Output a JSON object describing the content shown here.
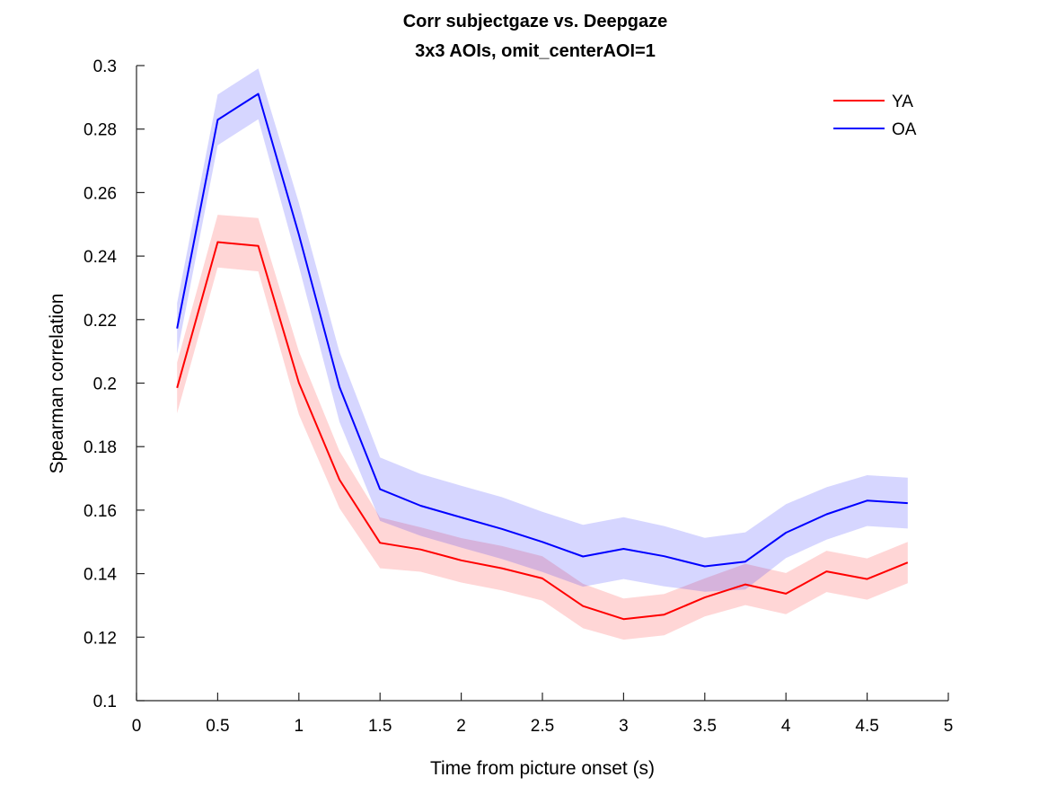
{
  "chart_data": {
    "type": "line",
    "title": [
      "Corr subjectgaze vs. Deepgaze",
      "3x3 AOIs, omit_centerAOI=1"
    ],
    "xlabel": "Time from picture onset (s)",
    "ylabel": "Spearman correlation",
    "xlim": [
      0,
      5
    ],
    "ylim": [
      0.1,
      0.3
    ],
    "xticks": [
      0,
      0.5,
      1,
      1.5,
      2,
      2.5,
      3,
      3.5,
      4,
      4.5,
      5
    ],
    "xtick_labels": [
      "0",
      "0.5",
      "1",
      "1.5",
      "2",
      "2.5",
      "3",
      "3.5",
      "4",
      "4.5",
      "5"
    ],
    "yticks": [
      0.1,
      0.12,
      0.14,
      0.16,
      0.18,
      0.2,
      0.22,
      0.24,
      0.26,
      0.28,
      0.3
    ],
    "ytick_labels": [
      "0.1",
      "0.12",
      "0.14",
      "0.16",
      "0.18",
      "0.2",
      "0.22",
      "0.24",
      "0.26",
      "0.28",
      "0.3"
    ],
    "grid": false,
    "legend_position": "top-right",
    "x": [
      0.25,
      0.5,
      0.75,
      1.0,
      1.25,
      1.5,
      1.75,
      2.0,
      2.25,
      2.5,
      2.75,
      3.0,
      3.25,
      3.5,
      3.75,
      4.0,
      4.25,
      4.5,
      4.75
    ],
    "series": [
      {
        "name": "YA",
        "color": "#ff0000",
        "band_color": "#ff0000",
        "values": [
          0.1985,
          0.2444,
          0.2432,
          0.2001,
          0.1696,
          0.1497,
          0.1476,
          0.1442,
          0.1417,
          0.1385,
          0.1298,
          0.1257,
          0.1271,
          0.1325,
          0.1366,
          0.1337,
          0.1407,
          0.1383,
          0.1435
        ],
        "lower": [
          0.1905,
          0.2364,
          0.2352,
          0.1901,
          0.1606,
          0.1417,
          0.1406,
          0.1372,
          0.1347,
          0.1315,
          0.1228,
          0.1192,
          0.1206,
          0.1265,
          0.1301,
          0.1272,
          0.1342,
          0.1318,
          0.137
        ],
        "upper": [
          0.2065,
          0.253,
          0.252,
          0.21,
          0.1786,
          0.1577,
          0.1546,
          0.1512,
          0.1487,
          0.1455,
          0.1368,
          0.1322,
          0.1336,
          0.1385,
          0.1431,
          0.1402,
          0.1472,
          0.1448,
          0.15
        ]
      },
      {
        "name": "OA",
        "color": "#0000ff",
        "band_color": "#0000ff",
        "values": [
          0.2172,
          0.2829,
          0.2911,
          0.2468,
          0.1988,
          0.1666,
          0.1614,
          0.1577,
          0.1541,
          0.15,
          0.1454,
          0.1478,
          0.1455,
          0.1423,
          0.1438,
          0.1529,
          0.1587,
          0.163,
          0.1622
        ],
        "lower": [
          0.2092,
          0.2749,
          0.2831,
          0.2368,
          0.1878,
          0.1566,
          0.1519,
          0.1482,
          0.1446,
          0.1405,
          0.1359,
          0.1383,
          0.136,
          0.1343,
          0.135,
          0.1449,
          0.1507,
          0.155,
          0.1542
        ],
        "upper": [
          0.2252,
          0.2909,
          0.2991,
          0.2568,
          0.2098,
          0.1766,
          0.1714,
          0.1677,
          0.1641,
          0.1595,
          0.1554,
          0.1578,
          0.155,
          0.1513,
          0.153,
          0.1619,
          0.1672,
          0.171,
          0.1702
        ]
      }
    ]
  }
}
